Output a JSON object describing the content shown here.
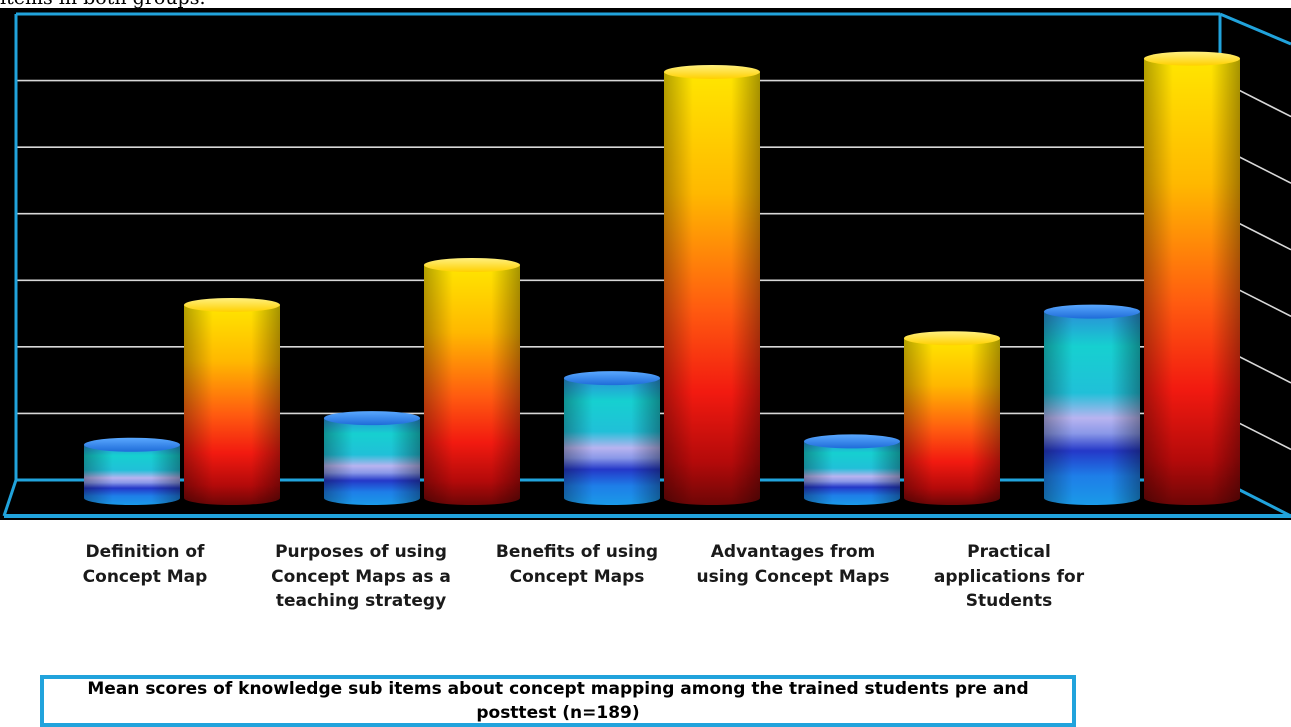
{
  "header": {
    "text": "items in both groups."
  },
  "caption": "Mean scores of knowledge sub items about concept mapping among the trained students pre and posttest (n=189)",
  "colors": {
    "background": "#000000",
    "frame": "#21a3dc",
    "gridline": "#d8d8d8",
    "pre_series": "#22c4dc",
    "post_series": "#ffd200"
  },
  "chart_data": {
    "type": "bar",
    "style": "3d-cylinder",
    "categories": [
      "Definition of Concept Map",
      "Purposes of using Concept Maps as a teaching strategy",
      "Benefits of using Concept Maps",
      "Advantages from using Concept Maps",
      "Practical applications for Students"
    ],
    "series": [
      {
        "values": [
          0.8,
          1.2,
          1.8,
          0.85,
          2.8
        ]
      },
      {
        "values": [
          2.9,
          3.5,
          6.4,
          2.4,
          6.6
        ]
      }
    ],
    "ylim": [
      0,
      7
    ],
    "grid": true,
    "legend": "none"
  }
}
